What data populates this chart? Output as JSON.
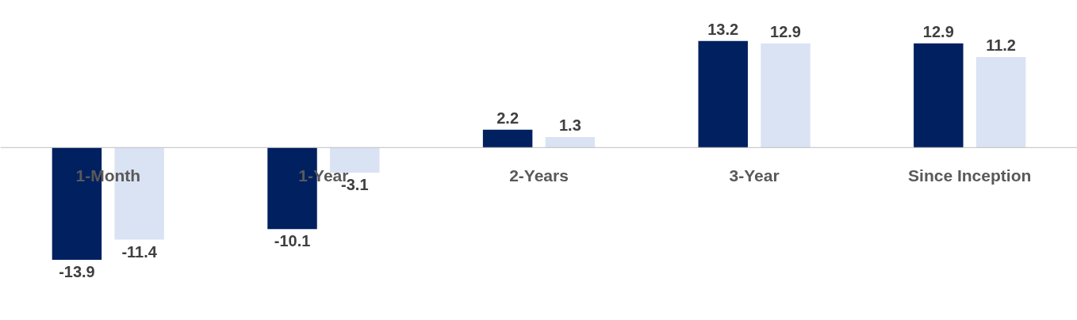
{
  "chart_data": {
    "type": "bar",
    "categories": [
      "1-Month",
      "1-Year",
      "2-Years",
      "3-Year",
      "Since Inception"
    ],
    "series": [
      {
        "color": "#002060",
        "values": [
          -13.9,
          -10.1,
          2.2,
          13.2,
          12.9
        ]
      },
      {
        "color": "#dae3f3",
        "values": [
          -11.4,
          -3.1,
          1.3,
          12.9,
          11.2
        ]
      }
    ],
    "data_labels": true,
    "grid": false
  }
}
